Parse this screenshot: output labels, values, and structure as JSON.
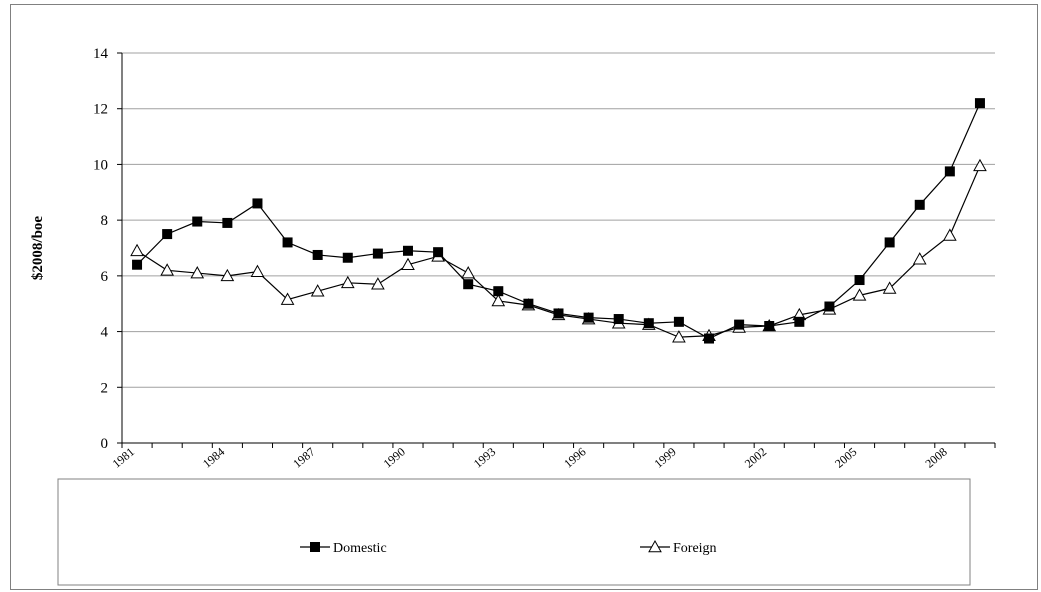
{
  "chart_data": {
    "type": "line",
    "ylabel": "$2008/boe",
    "xlabel": "",
    "ylim": [
      0,
      14
    ],
    "yticks": [
      "0",
      "2",
      "4",
      "6",
      "8",
      "10",
      "12",
      "14"
    ],
    "x": [
      1981,
      1982,
      1983,
      1984,
      1985,
      1986,
      1987,
      1988,
      1989,
      1990,
      1991,
      1992,
      1993,
      1994,
      1995,
      1996,
      1997,
      1998,
      1999,
      2000,
      2001,
      2002,
      2003,
      2004,
      2005,
      2006,
      2007,
      2008,
      2009
    ],
    "xtick_labels": [
      "1981",
      "1984",
      "1987",
      "1990",
      "1993",
      "1996",
      "1999",
      "2002",
      "2005",
      "2008"
    ],
    "grid": true,
    "legend_position": "bottom",
    "series": [
      {
        "name": "Domestic",
        "marker": "filled-square",
        "color": "#000000",
        "values": [
          6.4,
          7.5,
          7.95,
          7.9,
          8.6,
          7.2,
          6.75,
          6.65,
          6.8,
          6.9,
          6.85,
          5.7,
          5.45,
          5.0,
          4.65,
          4.5,
          4.45,
          4.3,
          4.35,
          3.75,
          4.25,
          4.2,
          4.35,
          4.9,
          5.85,
          7.2,
          8.55,
          9.75,
          12.2
        ]
      },
      {
        "name": "Foreign",
        "marker": "open-triangle",
        "color": "#000000",
        "values": [
          6.9,
          6.2,
          6.1,
          6.0,
          6.15,
          5.15,
          5.45,
          5.75,
          5.7,
          6.4,
          6.7,
          6.1,
          5.1,
          4.95,
          4.6,
          4.45,
          4.3,
          4.25,
          3.8,
          3.85,
          4.15,
          4.2,
          4.6,
          4.8,
          5.3,
          5.55,
          6.6,
          7.45,
          9.95
        ]
      }
    ]
  }
}
